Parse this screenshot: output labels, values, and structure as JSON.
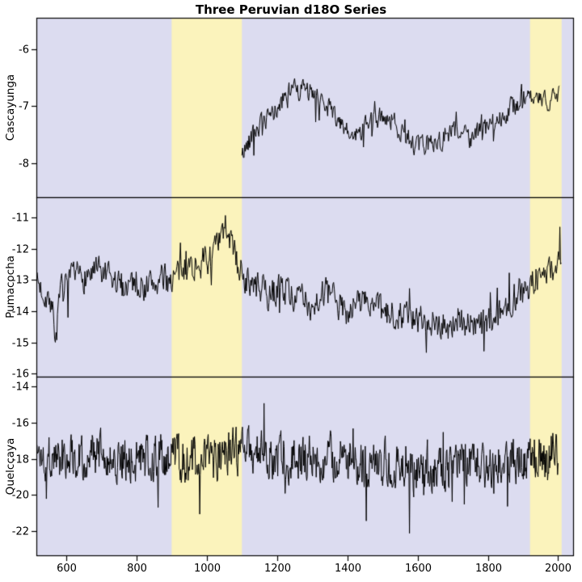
{
  "chart_data": {
    "type": "line",
    "title": "Three Peruvian d18O Series",
    "x_ticks": [
      600,
      800,
      1000,
      1200,
      1400,
      1600,
      1800,
      2000
    ],
    "xlim": [
      515,
      2045
    ],
    "highlight_bands": [
      {
        "from": 900,
        "to": 1100
      },
      {
        "from": 1920,
        "to": 2010
      }
    ],
    "band_color": "#FBF3BC",
    "panel_bg": "#DCDCF0",
    "line_color": "#000000",
    "legend": "none",
    "grid": "off",
    "panels": [
      {
        "name": "Cascayunga",
        "ylim": [
          -8.6,
          -5.45
        ],
        "y_ticks": [
          -6,
          -7,
          -8
        ],
        "step": 2,
        "noise_sd": 0.17,
        "spike_prob": 0.05,
        "spike_amp": 0.5,
        "anchors": [
          [
            1100,
            -7.9
          ],
          [
            1125,
            -7.5
          ],
          [
            1150,
            -7.35
          ],
          [
            1175,
            -7.25
          ],
          [
            1200,
            -7.05
          ],
          [
            1230,
            -6.85
          ],
          [
            1250,
            -6.55
          ],
          [
            1265,
            -6.75
          ],
          [
            1280,
            -6.65
          ],
          [
            1300,
            -6.85
          ],
          [
            1330,
            -6.9
          ],
          [
            1360,
            -7.1
          ],
          [
            1390,
            -7.45
          ],
          [
            1420,
            -7.55
          ],
          [
            1450,
            -7.35
          ],
          [
            1480,
            -7.25
          ],
          [
            1510,
            -7.15
          ],
          [
            1540,
            -7.35
          ],
          [
            1570,
            -7.5
          ],
          [
            1600,
            -7.75
          ],
          [
            1630,
            -7.65
          ],
          [
            1660,
            -7.6
          ],
          [
            1690,
            -7.5
          ],
          [
            1720,
            -7.45
          ],
          [
            1750,
            -7.55
          ],
          [
            1780,
            -7.45
          ],
          [
            1810,
            -7.35
          ],
          [
            1840,
            -7.15
          ],
          [
            1870,
            -7.0
          ],
          [
            1900,
            -6.85
          ],
          [
            1930,
            -6.9
          ],
          [
            1960,
            -6.95
          ],
          [
            1985,
            -6.8
          ],
          [
            2005,
            -6.85
          ]
        ]
      },
      {
        "name": "Pumacocha",
        "ylim": [
          -16.1,
          -10.35
        ],
        "y_ticks": [
          -11,
          -12,
          -13,
          -14,
          -15,
          -16
        ],
        "step": 2,
        "noise_sd": 0.45,
        "spike_prob": 0.05,
        "spike_amp": 0.9,
        "anchors": [
          [
            515,
            -13.0
          ],
          [
            530,
            -13.3
          ],
          [
            555,
            -13.6
          ],
          [
            570,
            -14.8
          ],
          [
            585,
            -13.4
          ],
          [
            610,
            -13.1
          ],
          [
            640,
            -12.9
          ],
          [
            670,
            -12.8
          ],
          [
            700,
            -12.8
          ],
          [
            730,
            -13.1
          ],
          [
            760,
            -13.2
          ],
          [
            790,
            -13.0
          ],
          [
            820,
            -13.2
          ],
          [
            850,
            -13.1
          ],
          [
            880,
            -13.0
          ],
          [
            910,
            -12.9
          ],
          [
            940,
            -12.6
          ],
          [
            970,
            -12.5
          ],
          [
            1000,
            -12.4
          ],
          [
            1030,
            -12.0
          ],
          [
            1055,
            -11.3
          ],
          [
            1070,
            -11.8
          ],
          [
            1090,
            -12.6
          ],
          [
            1120,
            -13.1
          ],
          [
            1150,
            -13.3
          ],
          [
            1180,
            -13.5
          ],
          [
            1210,
            -13.2
          ],
          [
            1240,
            -13.4
          ],
          [
            1270,
            -13.7
          ],
          [
            1300,
            -13.8
          ],
          [
            1330,
            -13.4
          ],
          [
            1360,
            -13.6
          ],
          [
            1390,
            -14.0
          ],
          [
            1420,
            -13.8
          ],
          [
            1450,
            -13.6
          ],
          [
            1480,
            -13.9
          ],
          [
            1510,
            -14.2
          ],
          [
            1540,
            -14.0
          ],
          [
            1570,
            -14.1
          ],
          [
            1600,
            -14.4
          ],
          [
            1630,
            -14.2
          ],
          [
            1660,
            -14.4
          ],
          [
            1690,
            -14.5
          ],
          [
            1720,
            -14.3
          ],
          [
            1750,
            -14.4
          ],
          [
            1780,
            -14.5
          ],
          [
            1810,
            -14.3
          ],
          [
            1840,
            -14.0
          ],
          [
            1870,
            -13.6
          ],
          [
            1900,
            -13.3
          ],
          [
            1930,
            -13.0
          ],
          [
            1960,
            -12.8
          ],
          [
            1985,
            -12.6
          ],
          [
            2010,
            -12.3
          ]
        ]
      },
      {
        "name": "Quelccaya",
        "ylim": [
          -23.4,
          -13.45
        ],
        "y_ticks": [
          -14,
          -16,
          -18,
          -20,
          -22
        ],
        "step": 1.5,
        "noise_sd": 1.15,
        "spike_prob": 0.05,
        "spike_amp": 2.3,
        "anchors": [
          [
            515,
            -17.7
          ],
          [
            560,
            -17.9
          ],
          [
            620,
            -17.7
          ],
          [
            680,
            -17.8
          ],
          [
            740,
            -17.9
          ],
          [
            800,
            -18.0
          ],
          [
            860,
            -18.0
          ],
          [
            920,
            -18.0
          ],
          [
            980,
            -18.1
          ],
          [
            1040,
            -17.9
          ],
          [
            1100,
            -17.6
          ],
          [
            1160,
            -17.7
          ],
          [
            1220,
            -17.9
          ],
          [
            1280,
            -18.0
          ],
          [
            1340,
            -18.0
          ],
          [
            1400,
            -18.1
          ],
          [
            1460,
            -18.2
          ],
          [
            1520,
            -18.3
          ],
          [
            1580,
            -18.6
          ],
          [
            1640,
            -18.6
          ],
          [
            1700,
            -18.5
          ],
          [
            1760,
            -18.3
          ],
          [
            1820,
            -18.2
          ],
          [
            1880,
            -17.9
          ],
          [
            1940,
            -17.7
          ],
          [
            2000,
            -17.6
          ]
        ]
      }
    ]
  }
}
